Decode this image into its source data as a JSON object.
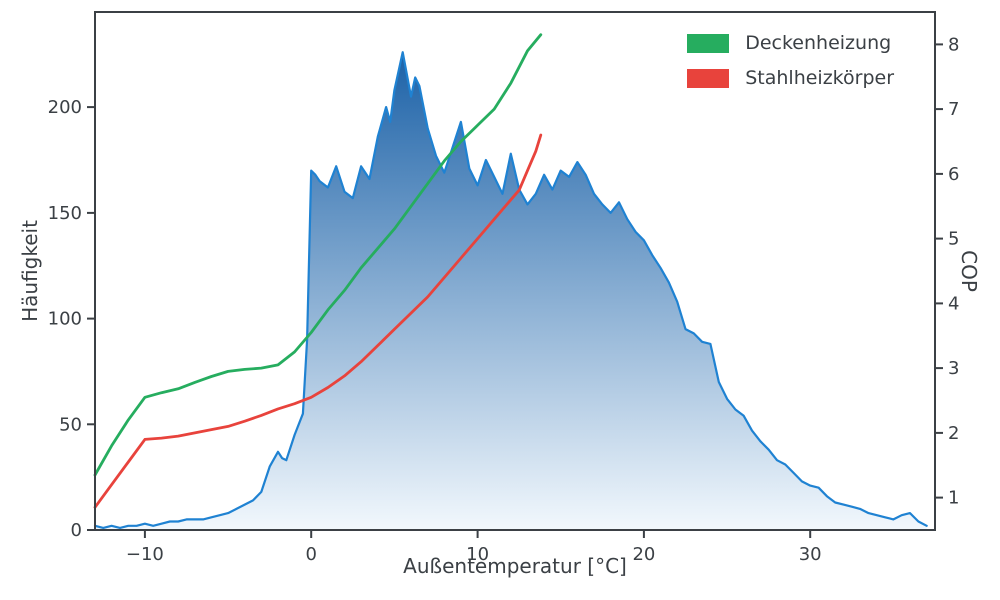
{
  "figure": {
    "background": "#ffffff",
    "axis_color": "#3b4045"
  },
  "chart_data": {
    "type": "histogram+line",
    "title": "",
    "xlabel": "Außentemperatur [°C]",
    "ylabel_left": "Häufigkeit",
    "ylabel_right": "COP",
    "xlim": [
      -13,
      37.5
    ],
    "ylim_left": [
      0,
      245
    ],
    "ylim_right": [
      0.5,
      8.5
    ],
    "x_ticks": [
      -10,
      0,
      10,
      20,
      30
    ],
    "x_tick_labels": [
      "−10",
      "0",
      "10",
      "20",
      "30"
    ],
    "y_ticks_left": [
      0,
      50,
      100,
      150,
      200
    ],
    "y_tick_labels_left": [
      "0",
      "50",
      "100",
      "150",
      "200"
    ],
    "y_ticks_right": [
      1,
      2,
      3,
      4,
      5,
      6,
      7,
      8
    ],
    "y_tick_labels_right": [
      "1",
      "2",
      "3",
      "4",
      "5",
      "6",
      "7",
      "8"
    ],
    "grid": false,
    "legend_position": "upper right",
    "colors": {
      "histogram_line": "#1f82d2",
      "histogram_gradient_top": "#0a55a0",
      "histogram_gradient_bottom": "#f2f8fd",
      "deckenheizung": "#26ad5f",
      "stahlheizkoerper": "#e8433c"
    },
    "series": [
      {
        "name": "Häufigkeit",
        "type": "area",
        "axis": "left",
        "color": "#1f82d2",
        "points": [
          [
            -13,
            2
          ],
          [
            -12.5,
            1
          ],
          [
            -12,
            2
          ],
          [
            -11.5,
            1
          ],
          [
            -11,
            2
          ],
          [
            -10.5,
            2
          ],
          [
            -10,
            3
          ],
          [
            -9.5,
            2
          ],
          [
            -9,
            3
          ],
          [
            -8.5,
            4
          ],
          [
            -8,
            4
          ],
          [
            -7.5,
            5
          ],
          [
            -7,
            5
          ],
          [
            -6.5,
            5
          ],
          [
            -6,
            6
          ],
          [
            -5.5,
            7
          ],
          [
            -5,
            8
          ],
          [
            -4.5,
            10
          ],
          [
            -4,
            12
          ],
          [
            -3.5,
            14
          ],
          [
            -3,
            18
          ],
          [
            -2.5,
            30
          ],
          [
            -2,
            37
          ],
          [
            -1.75,
            34
          ],
          [
            -1.5,
            33
          ],
          [
            -1,
            45
          ],
          [
            -0.5,
            55
          ],
          [
            -0.25,
            90
          ],
          [
            0,
            170
          ],
          [
            0.25,
            168
          ],
          [
            0.5,
            165
          ],
          [
            1,
            162
          ],
          [
            1.5,
            172
          ],
          [
            2,
            160
          ],
          [
            2.5,
            157
          ],
          [
            3,
            172
          ],
          [
            3.5,
            166
          ],
          [
            4,
            186
          ],
          [
            4.5,
            200
          ],
          [
            4.75,
            193
          ],
          [
            5,
            208
          ],
          [
            5.5,
            226
          ],
          [
            6,
            205
          ],
          [
            6.25,
            214
          ],
          [
            6.5,
            210
          ],
          [
            7,
            190
          ],
          [
            7.5,
            177
          ],
          [
            8,
            169
          ],
          [
            8.5,
            181
          ],
          [
            9,
            193
          ],
          [
            9.5,
            171
          ],
          [
            10,
            163
          ],
          [
            10.5,
            175
          ],
          [
            11,
            167
          ],
          [
            11.5,
            159
          ],
          [
            12,
            178
          ],
          [
            12.5,
            161
          ],
          [
            13,
            154
          ],
          [
            13.5,
            159
          ],
          [
            14,
            168
          ],
          [
            14.5,
            161
          ],
          [
            15,
            170
          ],
          [
            15.5,
            167
          ],
          [
            16,
            174
          ],
          [
            16.5,
            168
          ],
          [
            17,
            159
          ],
          [
            17.5,
            154
          ],
          [
            18,
            150
          ],
          [
            18.5,
            155
          ],
          [
            19,
            147
          ],
          [
            19.5,
            141
          ],
          [
            20,
            137
          ],
          [
            20.5,
            130
          ],
          [
            21,
            124
          ],
          [
            21.5,
            117
          ],
          [
            22,
            108
          ],
          [
            22.5,
            95
          ],
          [
            23,
            93
          ],
          [
            23.5,
            89
          ],
          [
            24,
            88
          ],
          [
            24.5,
            70
          ],
          [
            25,
            62
          ],
          [
            25.5,
            57
          ],
          [
            26,
            54
          ],
          [
            26.5,
            47
          ],
          [
            27,
            42
          ],
          [
            27.5,
            38
          ],
          [
            28,
            33
          ],
          [
            28.5,
            31
          ],
          [
            29,
            27
          ],
          [
            29.5,
            23
          ],
          [
            30,
            21
          ],
          [
            30.5,
            20
          ],
          [
            31,
            16
          ],
          [
            31.5,
            13
          ],
          [
            32,
            12
          ],
          [
            32.5,
            11
          ],
          [
            33,
            10
          ],
          [
            33.5,
            8
          ],
          [
            34,
            7
          ],
          [
            34.5,
            6
          ],
          [
            35,
            5
          ],
          [
            35.5,
            7
          ],
          [
            36,
            8
          ],
          [
            36.5,
            4
          ],
          [
            37,
            2
          ]
        ]
      },
      {
        "name": "Deckenheizung",
        "type": "line",
        "axis": "right",
        "color": "#26ad5f",
        "points": [
          [
            -13,
            1.35
          ],
          [
            -12,
            1.8
          ],
          [
            -11,
            2.2
          ],
          [
            -10,
            2.55
          ],
          [
            -9,
            2.62
          ],
          [
            -8,
            2.68
          ],
          [
            -7,
            2.78
          ],
          [
            -6,
            2.87
          ],
          [
            -5,
            2.95
          ],
          [
            -4,
            2.98
          ],
          [
            -3,
            3.0
          ],
          [
            -2,
            3.05
          ],
          [
            -1,
            3.25
          ],
          [
            0,
            3.55
          ],
          [
            1,
            3.9
          ],
          [
            2,
            4.2
          ],
          [
            3,
            4.55
          ],
          [
            4,
            4.85
          ],
          [
            5,
            5.15
          ],
          [
            6,
            5.5
          ],
          [
            7,
            5.85
          ],
          [
            8,
            6.2
          ],
          [
            9,
            6.5
          ],
          [
            10,
            6.75
          ],
          [
            11,
            7.0
          ],
          [
            12,
            7.4
          ],
          [
            13,
            7.9
          ],
          [
            13.8,
            8.15
          ]
        ]
      },
      {
        "name": "Stahlheizkörper",
        "type": "line",
        "axis": "right",
        "color": "#e8433c",
        "points": [
          [
            -13,
            0.85
          ],
          [
            -12,
            1.2
          ],
          [
            -11,
            1.55
          ],
          [
            -10,
            1.9
          ],
          [
            -9,
            1.92
          ],
          [
            -8,
            1.95
          ],
          [
            -7,
            2.0
          ],
          [
            -6,
            2.05
          ],
          [
            -5,
            2.1
          ],
          [
            -4,
            2.18
          ],
          [
            -3,
            2.27
          ],
          [
            -2,
            2.37
          ],
          [
            -1,
            2.45
          ],
          [
            0,
            2.55
          ],
          [
            1,
            2.7
          ],
          [
            2,
            2.88
          ],
          [
            3,
            3.1
          ],
          [
            4,
            3.35
          ],
          [
            5,
            3.6
          ],
          [
            6,
            3.85
          ],
          [
            7,
            4.1
          ],
          [
            8,
            4.4
          ],
          [
            9,
            4.7
          ],
          [
            10,
            5.0
          ],
          [
            11,
            5.3
          ],
          [
            11.5,
            5.45
          ],
          [
            12,
            5.6
          ],
          [
            12.5,
            5.75
          ],
          [
            13,
            6.05
          ],
          [
            13.5,
            6.35
          ],
          [
            13.8,
            6.6
          ]
        ]
      }
    ]
  },
  "legend": {
    "items": [
      {
        "label": "Deckenheizung",
        "color": "#26ad5f"
      },
      {
        "label": "Stahlheizkörper",
        "color": "#e8433c"
      }
    ]
  }
}
